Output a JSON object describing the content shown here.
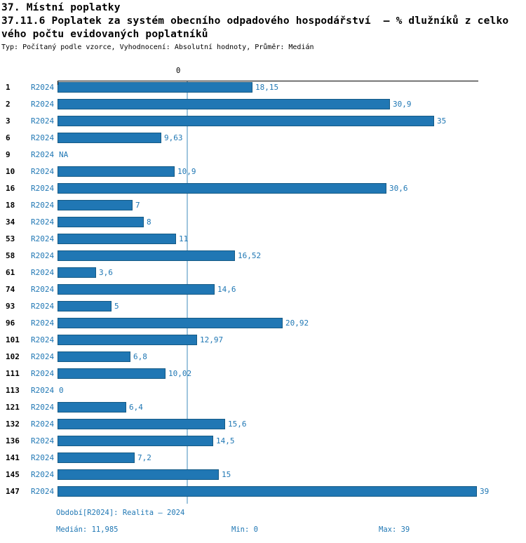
{
  "header": {
    "title_line1": "37. Místní poplatky",
    "title_line2": "37.11.6 Poplatek za systém obecního odpadového hospodářství  – % dlužníků z celko",
    "title_line3": "vého počtu evidovaných poplatníků",
    "subtitle": "Typ: Počítaný podle vzorce, Vyhodnocení: Absolutní hodnoty, Průměr: Medián"
  },
  "chart_data": {
    "type": "bar",
    "orientation": "horizontal",
    "series_label": "R2024",
    "axis_top_tick_label": "0",
    "categories": [
      "1",
      "2",
      "3",
      "6",
      "9",
      "10",
      "16",
      "18",
      "34",
      "53",
      "58",
      "61",
      "74",
      "93",
      "96",
      "101",
      "102",
      "111",
      "113",
      "121",
      "132",
      "136",
      "141",
      "145",
      "147"
    ],
    "values": [
      18.15,
      30.9,
      35,
      9.63,
      null,
      10.9,
      30.6,
      7,
      8,
      11,
      16.52,
      3.6,
      14.6,
      5,
      20.92,
      12.97,
      6.8,
      10.02,
      0,
      6.4,
      15.6,
      14.5,
      7.2,
      15,
      39
    ],
    "value_labels": [
      "18,15",
      "30,9",
      "35",
      "9,63",
      "NA",
      "10,9",
      "30,6",
      "7",
      "8",
      "11",
      "16,52",
      "3,6",
      "14,6",
      "5",
      "20,92",
      "12,97",
      "6,8",
      "10,02",
      "0",
      "6,4",
      "15,6",
      "14,5",
      "7,2",
      "15",
      "39"
    ],
    "xlim": [
      0,
      39
    ],
    "median": 11.985,
    "min": 0,
    "max": 39,
    "bar_color": "#2077b4",
    "median_line_color": "#9fc5dd",
    "grid": false,
    "legend_position": "none",
    "title": "37.11.6 Poplatek za systém obecního odpadového hospodářství – % dlužníků z celkového počtu evidovaných poplatníků",
    "xlabel": "",
    "ylabel": ""
  },
  "footer": {
    "period": "Období[R2024]: Realita – 2024",
    "median": "Medián: 11,985",
    "min": "Min: 0",
    "max": "Max: 39"
  }
}
